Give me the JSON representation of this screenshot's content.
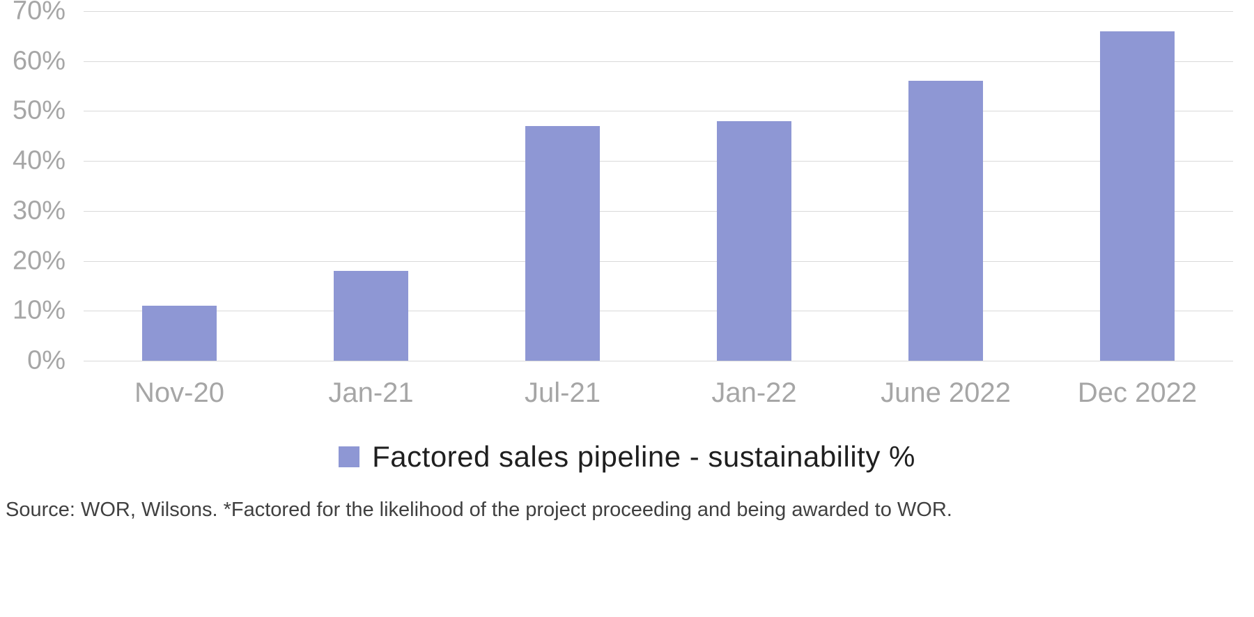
{
  "chart_data": {
    "type": "bar",
    "categories": [
      "Nov-20",
      "Jan-21",
      "Jul-21",
      "Jan-22",
      "June 2022",
      "Dec 2022"
    ],
    "values": [
      11,
      18,
      47,
      48,
      56,
      66
    ],
    "title": "",
    "xlabel": "",
    "ylabel": "",
    "ylim": [
      0,
      70
    ],
    "ytick_step": 10,
    "ytick_labels": [
      "0%",
      "10%",
      "20%",
      "30%",
      "40%",
      "50%",
      "60%",
      "70%"
    ],
    "legend": "Factored sales pipeline - sustainability %",
    "grid": true,
    "legend_position": "bottom-center",
    "bar_color": "#8e97d4",
    "grid_color": "#d9d9d9",
    "axis_text_color": "#a6a6a6",
    "source_note": "Source: WOR, Wilsons. *Factored for the likelihood of the project proceeding and being awarded to WOR."
  }
}
